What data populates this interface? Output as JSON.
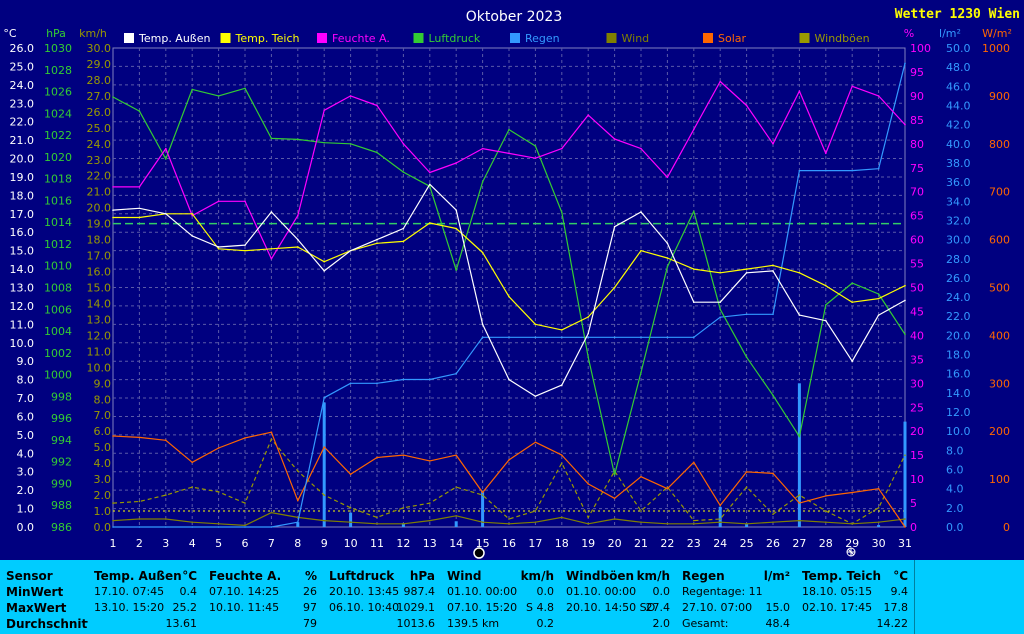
{
  "title": "Oktober 2023",
  "brand": "Wetter 1230 Wien",
  "colors": {
    "background": "#000080",
    "grid": "#5a5aa8",
    "temp_aussen": "#FFFFFF",
    "temp_teich": "#FFFF00",
    "feuchte": "#FF00FF",
    "luftdruck": "#33CC33",
    "regen": "#3399FF",
    "wind": "#808000",
    "solar": "#FF6600",
    "windboeen": "#999900",
    "threshold": "#33CC66",
    "stats_bg": "#00CCFF"
  },
  "axes": {
    "left_units": [
      "°C",
      "hPa",
      "km/h"
    ],
    "right_units": [
      "%",
      "l/m²",
      "W/m²"
    ]
  },
  "legend": [
    {
      "label": "Temp. Außen",
      "color": "#FFFFFF"
    },
    {
      "label": "Temp. Teich",
      "color": "#FFFF00"
    },
    {
      "label": "Feuchte A.",
      "color": "#FF00FF"
    },
    {
      "label": "Luftdruck",
      "color": "#33CC33"
    },
    {
      "label": "Regen",
      "color": "#3399FF"
    },
    {
      "label": "Wind",
      "color": "#808000"
    },
    {
      "label": "Solar",
      "color": "#FF6600"
    },
    {
      "label": "Windböen",
      "color": "#999900"
    }
  ],
  "chart_data": {
    "type": "line",
    "title": "Oktober 2023",
    "x": [
      1,
      2,
      3,
      4,
      5,
      6,
      7,
      8,
      9,
      10,
      11,
      12,
      13,
      14,
      15,
      16,
      17,
      18,
      19,
      20,
      21,
      22,
      23,
      24,
      25,
      26,
      27,
      28,
      29,
      30,
      31
    ],
    "x_ticks": [
      "1",
      "2",
      "3",
      "4",
      "5",
      "6",
      "7",
      "8",
      "9",
      "10",
      "11",
      "12",
      "13",
      "14",
      "15",
      "16",
      "17",
      "18",
      "19",
      "20",
      "21",
      "22",
      "23",
      "24",
      "25",
      "26",
      "27",
      "28",
      "29",
      "30",
      "31"
    ],
    "axes": {
      "celsius": {
        "unit": "°C",
        "range": [
          0.0,
          26.0
        ],
        "step": 1.0
      },
      "hpa": {
        "unit": "hPa",
        "range": [
          986,
          1030
        ],
        "step": 2
      },
      "kmh": {
        "unit": "km/h",
        "range": [
          0.0,
          30.0
        ],
        "step": 1.0
      },
      "percent": {
        "unit": "%",
        "range": [
          0,
          100
        ],
        "step": 5
      },
      "rain": {
        "unit": "l/m²",
        "range": [
          0.0,
          50.0
        ],
        "step": 2.0
      },
      "solar": {
        "unit": "W/m²",
        "range": [
          0,
          1000
        ],
        "step": 100
      }
    },
    "threshold_line": {
      "axis": "kmh",
      "value": 19.0
    },
    "dotted_line": {
      "axis": "kmh",
      "value": 1.0
    },
    "series": [
      {
        "name": "Temp. Außen",
        "axis": "celsius",
        "color": "#FFFFFF",
        "style": "line",
        "values": [
          17.2,
          17.3,
          17.0,
          15.8,
          15.2,
          15.3,
          17.1,
          15.6,
          13.9,
          15.0,
          15.6,
          16.2,
          18.6,
          17.2,
          11.0,
          8.0,
          7.1,
          7.7,
          10.5,
          16.3,
          17.1,
          15.4,
          12.2,
          12.2,
          13.8,
          13.9,
          11.5,
          11.2,
          9.0,
          11.5,
          12.3
        ]
      },
      {
        "name": "Temp. Teich",
        "axis": "celsius",
        "color": "#FFFF00",
        "style": "line",
        "values": [
          16.8,
          16.8,
          17.0,
          17.0,
          15.1,
          15.0,
          15.1,
          15.2,
          14.4,
          15.0,
          15.4,
          15.5,
          16.5,
          16.2,
          14.9,
          12.5,
          11.0,
          10.7,
          11.4,
          13.0,
          15.0,
          14.6,
          14.0,
          13.8,
          14.0,
          14.2,
          13.8,
          13.1,
          12.2,
          12.4,
          13.1
        ]
      },
      {
        "name": "Feuchte A.",
        "axis": "percent",
        "color": "#FF00FF",
        "style": "line",
        "values": [
          71,
          71,
          79,
          65,
          68,
          68,
          56,
          65,
          87,
          90,
          88,
          80,
          74,
          76,
          79,
          78,
          77,
          79,
          86,
          81,
          79,
          73,
          83,
          93,
          88,
          80,
          91,
          78,
          92,
          90,
          84
        ]
      },
      {
        "name": "Luftdruck",
        "axis": "hpa",
        "color": "#33CC33",
        "style": "line",
        "values": [
          1025.5,
          1024.2,
          1019.8,
          1026.2,
          1025.6,
          1026.3,
          1021.7,
          1021.6,
          1021.3,
          1021.2,
          1020.4,
          1018.6,
          1017.3,
          1009.6,
          1017.7,
          1022.5,
          1021.0,
          1014.9,
          1001.6,
          990.8,
          1000.2,
          1009.9,
          1015.0,
          1006.0,
          1001.6,
          998.1,
          994.3,
          1006.4,
          1008.4,
          1007.4,
          1003.7
        ]
      },
      {
        "name": "Regen",
        "axis": "rain",
        "color": "#3399FF",
        "style": "line",
        "values": [
          0.0,
          0.0,
          0.0,
          0.0,
          0.0,
          0.0,
          0.0,
          0.5,
          13.5,
          15.0,
          15.0,
          15.4,
          15.4,
          16.0,
          19.8,
          19.8,
          19.8,
          19.8,
          19.8,
          19.8,
          19.8,
          19.8,
          19.8,
          21.9,
          22.2,
          22.2,
          37.2,
          37.2,
          37.2,
          37.4,
          48.4
        ]
      },
      {
        "name": "Regen (täglich)",
        "axis": "rain",
        "color": "#3399FF",
        "style": "bars",
        "values": [
          0,
          0,
          0,
          0,
          0,
          0,
          0,
          0.5,
          13.0,
          1.5,
          0,
          0.4,
          0,
          0.6,
          3.8,
          0,
          0,
          0,
          0,
          0,
          0,
          0,
          0,
          2.1,
          0.3,
          0,
          15.0,
          0,
          0,
          0.2,
          11.0
        ]
      },
      {
        "name": "Wind",
        "axis": "kmh",
        "color": "#808000",
        "style": "line",
        "values": [
          0.4,
          0.5,
          0.5,
          0.3,
          0.2,
          0.1,
          0.9,
          0.6,
          0.4,
          0.3,
          0.2,
          0.2,
          0.4,
          0.7,
          0.3,
          0.2,
          0.3,
          0.6,
          0.2,
          0.5,
          0.3,
          0.2,
          0.2,
          0.3,
          0.2,
          0.3,
          0.4,
          0.3,
          0.2,
          0.3,
          0.5
        ]
      },
      {
        "name": "Solar",
        "axis": "solar",
        "color": "#FF6600",
        "style": "line",
        "values": [
          190,
          187,
          181,
          135,
          165,
          186,
          198,
          55,
          167,
          110,
          145,
          150,
          138,
          150,
          72,
          140,
          177,
          150,
          90,
          60,
          105,
          80,
          135,
          45,
          115,
          112,
          50,
          65,
          72,
          80,
          0
        ]
      },
      {
        "name": "Windböen",
        "axis": "kmh",
        "color": "#999900",
        "style": "dashed",
        "values": [
          1.5,
          1.6,
          2.0,
          2.5,
          2.2,
          1.5,
          5.5,
          3.5,
          2.0,
          1.2,
          0.6,
          1.2,
          1.5,
          2.5,
          2.0,
          0.5,
          1.0,
          4.0,
          0.6,
          3.5,
          1.0,
          2.5,
          0.4,
          0.5,
          2.5,
          0.8,
          2.0,
          1.0,
          0.2,
          1.2,
          4.5
        ]
      }
    ]
  },
  "stats": {
    "row_labels": [
      "Sensor",
      "MinWert",
      "MaxWert",
      "Durchschnitt"
    ],
    "columns": [
      {
        "name": "Temp. Außen",
        "unit": "°C",
        "min": {
          "left": "17.10.  07:45",
          "right": "0.4"
        },
        "max": {
          "left": "13.10.  15:20",
          "right": "25.2"
        },
        "avg": {
          "left": "",
          "right": "13.61"
        }
      },
      {
        "name": "Feuchte A.",
        "unit": "%",
        "min": {
          "left": "07.10.  14:25",
          "right": "26"
        },
        "max": {
          "left": "10.10.  11:45",
          "right": "97"
        },
        "avg": {
          "left": "",
          "right": "79"
        }
      },
      {
        "name": "Luftdruck",
        "unit": "hPa",
        "min": {
          "left": "20.10.  13:45",
          "right": "987.4"
        },
        "max": {
          "left": "06.10.  10:40",
          "right": "1029.1"
        },
        "avg": {
          "left": "",
          "right": "1013.6"
        }
      },
      {
        "name": "Wind",
        "unit": "km/h",
        "min": {
          "left": "01.10.  00:00",
          "right": "0.0"
        },
        "max": {
          "left": "07.10.  15:20",
          "right": "S 4.8"
        },
        "avg": {
          "left": "139.5 km",
          "right": "0.2"
        }
      },
      {
        "name": "Windböen",
        "unit": "km/h",
        "min": {
          "left": "01.10.  00:00",
          "right": "0.0"
        },
        "max": {
          "left": "20.10.  14:50 SO",
          "right": "27.4"
        },
        "avg": {
          "left": "",
          "right": "2.0"
        }
      },
      {
        "name": "Regen",
        "unit": "l/m²",
        "min": {
          "left": "Regentage: 11",
          "right": ""
        },
        "max": {
          "left": "27.10.  07:00",
          "right": "15.0"
        },
        "avg": {
          "left": "Gesamt:",
          "right": "48.4"
        }
      },
      {
        "name": "Temp. Teich",
        "unit": "°C",
        "min": {
          "left": "18.10.  05:15",
          "right": "9.4"
        },
        "max": {
          "left": "02.10.  17:45",
          "right": "17.8"
        },
        "avg": {
          "left": "",
          "right": "14.22"
        }
      }
    ]
  }
}
